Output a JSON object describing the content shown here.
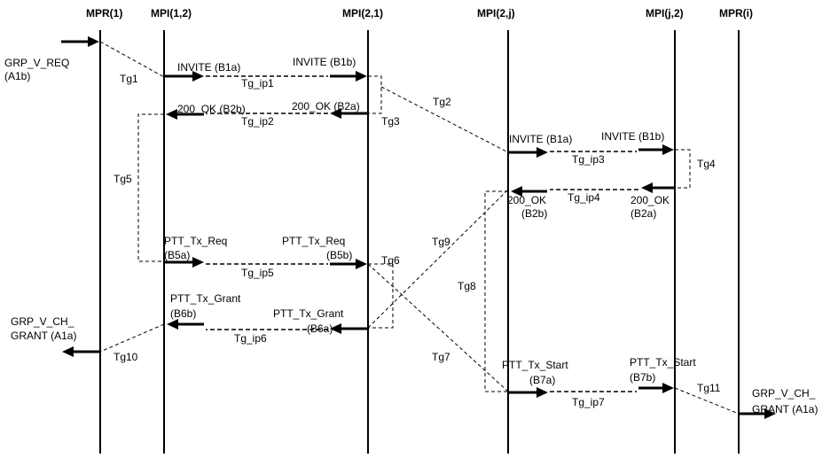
{
  "diagram": {
    "entities": [
      "MPR(1)",
      "MPI(1,2)",
      "MPI(2,1)",
      "MPI(2,j)",
      "MPI(j,2)",
      "MPR(i)"
    ],
    "external": {
      "grp_v_req": [
        "GRP_V_REQ",
        "(A1b)"
      ],
      "grp_v_ch_grant_left": [
        "GRP_V_CH_",
        "GRANT (A1a)"
      ],
      "grp_v_ch_grant_right": [
        "GRP_V_CH_",
        "GRANT  (A1a)"
      ]
    },
    "messages": {
      "invite_b1a_left": "INVITE (B1a)",
      "invite_b1b_left": "INVITE (B1b)",
      "ok_b2b_left": "200_OK (B2b)",
      "ok_b2a_left": "200_OK (B2a)",
      "invite_b1a_right": "INVITE (B1a)",
      "invite_b1b_right": "INVITE (B1b)",
      "ok_b2b_right": [
        "200_OK",
        "(B2b)"
      ],
      "ok_b2a_right": [
        "200_OK",
        "(B2a)"
      ],
      "ptt_req_b5a": [
        "PTT_Tx_Req",
        "(B5a)"
      ],
      "ptt_req_b5b": [
        "PTT_Tx_Req",
        "(B5b)"
      ],
      "ptt_grant_b6b": [
        "PTT_Tx_Grant",
        "(B6b)"
      ],
      "ptt_grant_b6a": [
        "PTT_Tx_Grant",
        "(B6a)"
      ],
      "ptt_start_b7a": [
        "PTT_Tx_Start",
        "(B7a)"
      ],
      "ptt_start_b7b": [
        "PTT_Tx_Start",
        "(B7b)"
      ]
    },
    "timers": {
      "tg1": "Tg1",
      "tg2": "Tg2",
      "tg3": "Tg3",
      "tg4": "Tg4",
      "tg5": "Tg5",
      "tg6": "Tg6",
      "tg7": "Tg7",
      "tg8": "Tg8",
      "tg9": "Tg9",
      "tg10": "Tg10",
      "tg11": "Tg11"
    },
    "ip_timers": {
      "tg_ip1": "Tg_ip1",
      "tg_ip2": "Tg_ip2",
      "tg_ip3": "Tg_ip3",
      "tg_ip4": "Tg_ip4",
      "tg_ip5": "Tg_ip5",
      "tg_ip6": "Tg_ip6",
      "tg_ip7": "Tg_ip7"
    }
  }
}
